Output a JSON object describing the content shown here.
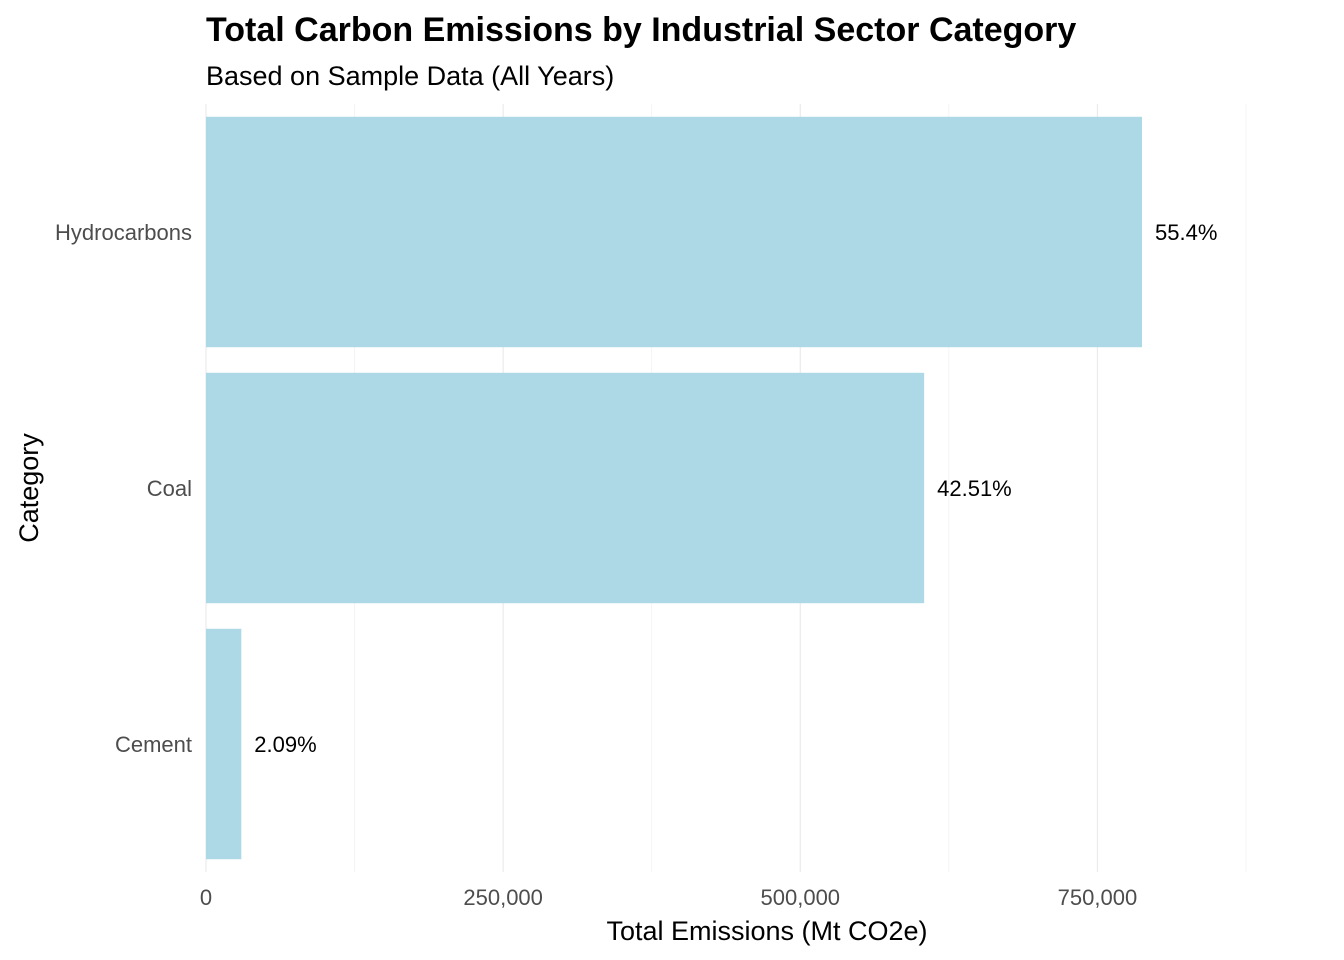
{
  "chart_data": {
    "type": "bar",
    "orientation": "horizontal",
    "title": "Total Carbon Emissions by Industrial Sector Category",
    "subtitle": "Based on Sample Data (All Years)",
    "xlabel": "Total Emissions (Mt CO2e)",
    "ylabel": "Category",
    "categories": [
      "Hydrocarbons",
      "Coal",
      "Cement"
    ],
    "values": [
      787500,
      604200,
      29700
    ],
    "data_labels": [
      "55.4%",
      "42.51%",
      "2.09%"
    ],
    "xlim": [
      0,
      875000
    ],
    "x_ticks": [
      0,
      250000,
      500000,
      750000
    ],
    "x_tick_labels": [
      "0",
      "250,000",
      "500,000",
      "750,000"
    ],
    "x_minor_ticks": [
      125000,
      375000,
      625000,
      875000
    ],
    "grid": true,
    "legend": "none",
    "bar_color": "#add8e6"
  }
}
